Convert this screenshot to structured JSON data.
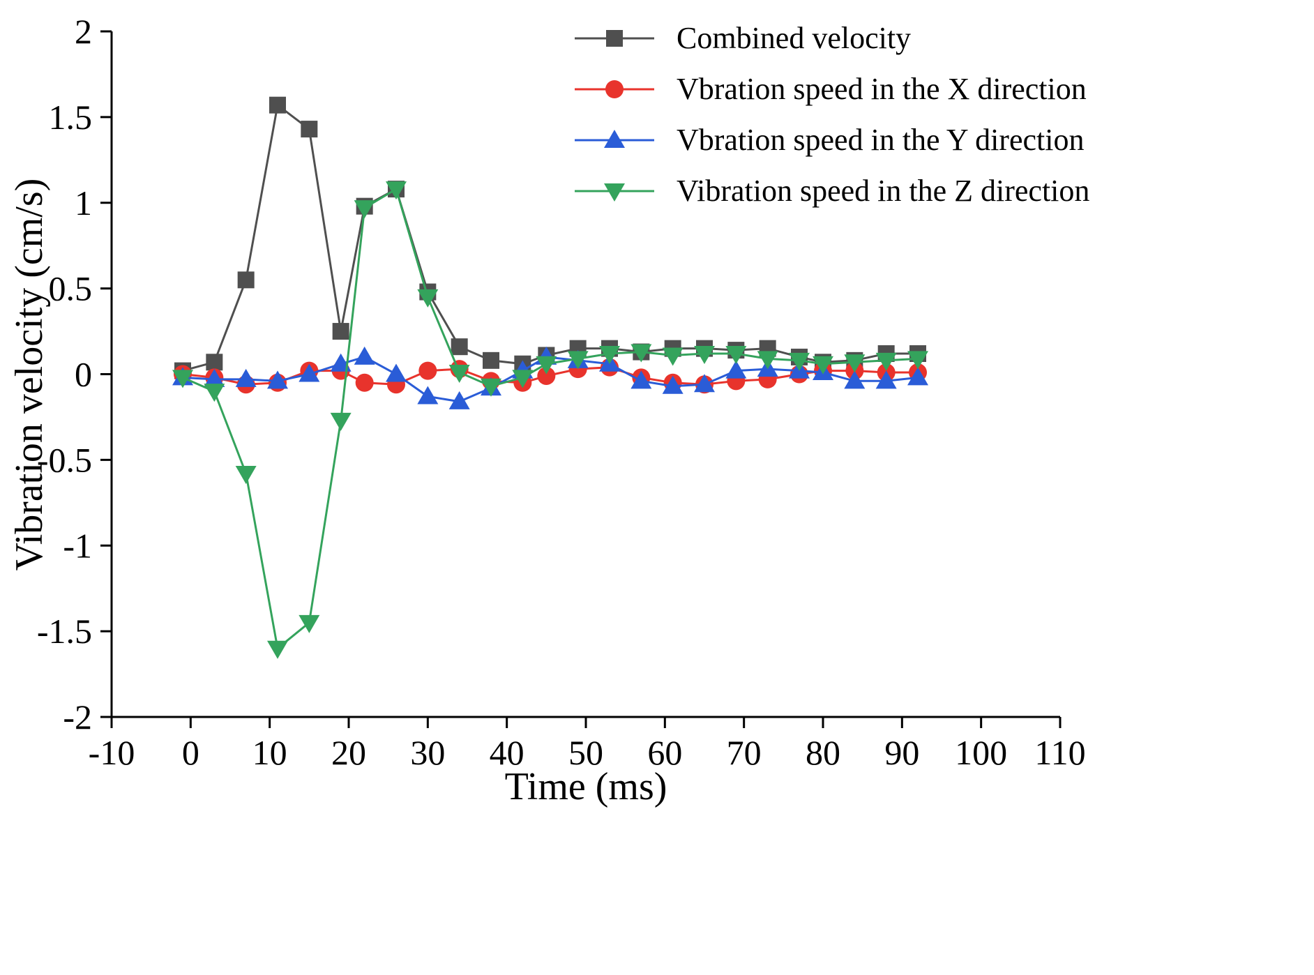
{
  "chart_data": {
    "type": "line",
    "title": "",
    "xlabel": "Time (ms)",
    "ylabel": "Vibration velocity (cm/s)",
    "xlim": [
      -10,
      110
    ],
    "ylim": [
      -2,
      2
    ],
    "xticks": [
      -10,
      0,
      10,
      20,
      30,
      40,
      50,
      60,
      70,
      80,
      90,
      100,
      110
    ],
    "yticks": [
      -2,
      -1.5,
      -1,
      -0.5,
      0,
      0.5,
      1,
      1.5,
      2
    ],
    "grid": false,
    "legend_position": "top-right",
    "background": "#ffffff",
    "axis_color": "#000000",
    "x": [
      -1,
      3,
      7,
      11,
      15,
      19,
      22,
      26,
      30,
      34,
      38,
      42,
      45,
      49,
      53,
      57,
      61,
      65,
      69,
      73,
      77,
      80,
      84,
      88,
      92
    ],
    "series": [
      {
        "name": "Combined velocity",
        "color": "#4f4f4f",
        "marker": "square",
        "values": [
          0.02,
          0.07,
          0.55,
          1.57,
          1.43,
          0.25,
          0.98,
          1.08,
          0.48,
          0.16,
          0.08,
          0.06,
          0.11,
          0.15,
          0.15,
          0.13,
          0.15,
          0.15,
          0.14,
          0.15,
          0.1,
          0.07,
          0.08,
          0.12,
          0.12
        ]
      },
      {
        "name": "Vbration speed in the X direction",
        "color": "#e8332c",
        "marker": "circle",
        "values": [
          0.0,
          -0.02,
          -0.06,
          -0.05,
          0.02,
          0.02,
          -0.05,
          -0.06,
          0.02,
          0.03,
          -0.04,
          -0.05,
          -0.01,
          0.03,
          0.04,
          -0.02,
          -0.05,
          -0.06,
          -0.04,
          -0.03,
          0.0,
          0.02,
          0.02,
          0.01,
          0.01
        ]
      },
      {
        "name": "Vbration speed in the Y direction",
        "color": "#2a5cd7",
        "marker": "triangle-up",
        "values": [
          -0.02,
          -0.03,
          -0.03,
          -0.04,
          0.0,
          0.06,
          0.1,
          0.0,
          -0.13,
          -0.16,
          -0.08,
          0.02,
          0.1,
          0.08,
          0.06,
          -0.04,
          -0.07,
          -0.06,
          0.02,
          0.03,
          0.02,
          0.01,
          -0.04,
          -0.04,
          -0.02
        ]
      },
      {
        "name": "Vibration speed in the Z direction",
        "color": "#34a35c",
        "marker": "triangle-down",
        "values": [
          -0.02,
          -0.1,
          -0.58,
          -1.6,
          -1.45,
          -0.27,
          0.97,
          1.08,
          0.45,
          0.01,
          -0.07,
          -0.02,
          0.06,
          0.09,
          0.12,
          0.13,
          0.11,
          0.12,
          0.12,
          0.09,
          0.08,
          0.06,
          0.07,
          0.08,
          0.09
        ]
      }
    ]
  }
}
